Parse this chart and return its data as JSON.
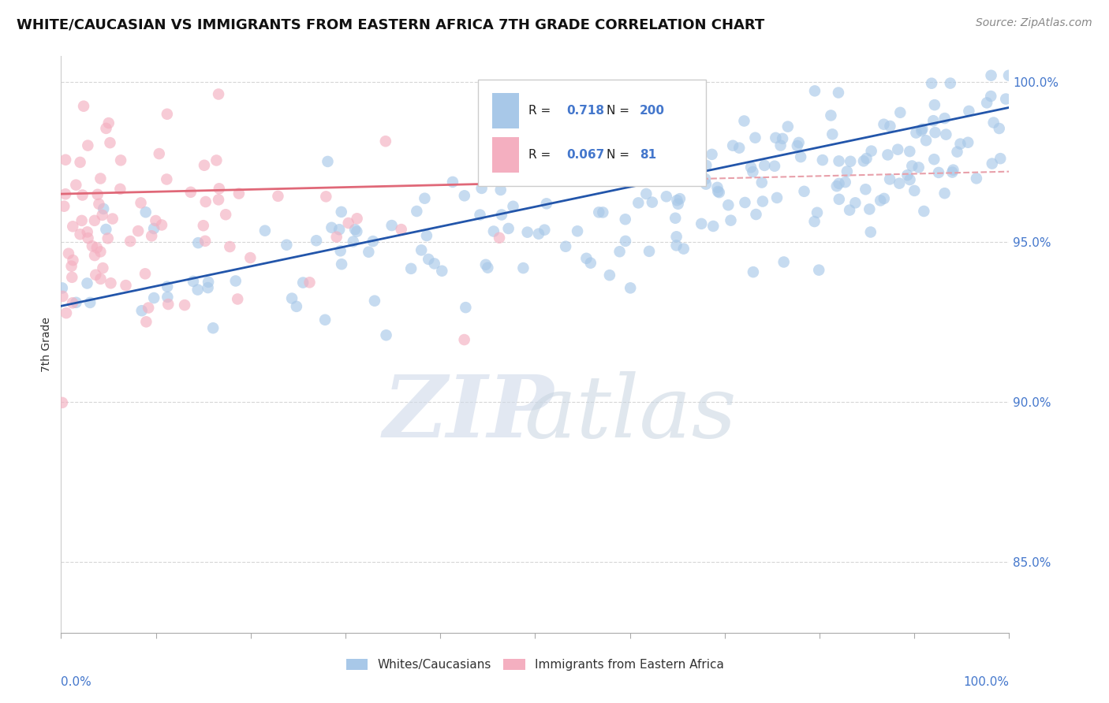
{
  "title": "WHITE/CAUCASIAN VS IMMIGRANTS FROM EASTERN AFRICA 7TH GRADE CORRELATION CHART",
  "source": "Source: ZipAtlas.com",
  "ylabel": "7th Grade",
  "blue_R": 0.718,
  "blue_N": 200,
  "pink_R": 0.067,
  "pink_N": 81,
  "blue_color": "#a8c8e8",
  "pink_color": "#f4afc0",
  "blue_line_color": "#2255aa",
  "pink_line_color": "#e06878",
  "dash_color": "#e8a0aa",
  "watermark_zip_color": "#c8d4e8",
  "watermark_atlas_color": "#c8d0e0",
  "background_color": "#ffffff",
  "grid_color": "#cccccc",
  "ytick_color": "#4477cc",
  "xtick_color": "#4477cc",
  "xmin": 0.0,
  "xmax": 1.0,
  "ymin": 0.828,
  "ymax": 1.008,
  "yticks": [
    0.85,
    0.9,
    0.95,
    1.0
  ],
  "ytick_labels": [
    "85.0%",
    "90.0%",
    "95.0%",
    "100.0%"
  ],
  "blue_line_start_y": 0.93,
  "blue_line_end_y": 0.992,
  "pink_line_start_y": 0.965,
  "pink_line_end_y": 0.972,
  "title_fontsize": 13,
  "source_fontsize": 10,
  "tick_fontsize": 11,
  "legend_fontsize": 11,
  "ylabel_fontsize": 10
}
